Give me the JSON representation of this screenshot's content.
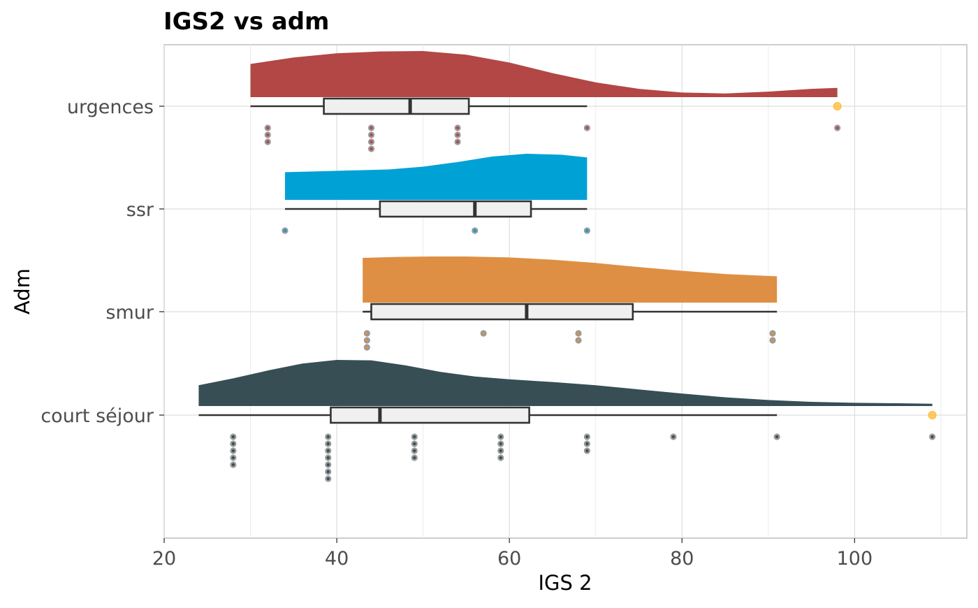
{
  "chart_data": {
    "type": "raincloud",
    "title": "IGS2 vs adm",
    "xlabel": "IGS 2",
    "ylabel": "Adm",
    "xlim": [
      20,
      113
    ],
    "x_ticks": [
      20,
      40,
      60,
      80,
      100
    ],
    "grid": true,
    "categories": [
      "urgences",
      "ssr",
      "smur",
      "court séjour"
    ],
    "series": [
      {
        "name": "urgences",
        "color": "#b24745",
        "box": {
          "min": 30,
          "q1": 38.5,
          "median": 48.5,
          "q3": 55.3,
          "max": 69
        },
        "outliers": [
          98
        ],
        "density": {
          "x": [
            30,
            35,
            40,
            45,
            50,
            55,
            60,
            65,
            70,
            75,
            80,
            85,
            90,
            95,
            98
          ],
          "y": [
            0.72,
            0.86,
            0.95,
            0.99,
            1.0,
            0.92,
            0.75,
            0.52,
            0.32,
            0.18,
            0.1,
            0.08,
            0.12,
            0.18,
            0.2
          ]
        },
        "points": [
          {
            "x": 32,
            "count": 3
          },
          {
            "x": 44,
            "count": 4
          },
          {
            "x": 54,
            "count": 3
          },
          {
            "x": 69,
            "count": 1
          },
          {
            "x": 98,
            "count": 1
          }
        ]
      },
      {
        "name": "ssr",
        "color": "#00a1d5",
        "box": {
          "min": 34,
          "q1": 45,
          "median": 56,
          "q3": 62.5,
          "max": 69
        },
        "outliers": [],
        "density": {
          "x": [
            34,
            38,
            42,
            46,
            50,
            54,
            58,
            62,
            66,
            69
          ],
          "y": [
            0.6,
            0.62,
            0.64,
            0.66,
            0.72,
            0.82,
            0.94,
            1.0,
            0.98,
            0.92
          ]
        },
        "points": [
          {
            "x": 34,
            "count": 1
          },
          {
            "x": 56,
            "count": 1
          },
          {
            "x": 69,
            "count": 1
          }
        ]
      },
      {
        "name": "smur",
        "color": "#df8f44",
        "box": {
          "min": 43,
          "q1": 44,
          "median": 62,
          "q3": 74.3,
          "max": 91
        },
        "outliers": [],
        "density": {
          "x": [
            43,
            47,
            51,
            55,
            60,
            65,
            70,
            75,
            80,
            85,
            91
          ],
          "y": [
            0.97,
            0.99,
            1.0,
            1.0,
            0.98,
            0.93,
            0.86,
            0.77,
            0.69,
            0.62,
            0.57
          ]
        },
        "points": [
          {
            "x": 43.5,
            "count": 3
          },
          {
            "x": 57,
            "count": 1
          },
          {
            "x": 68,
            "count": 2
          },
          {
            "x": 90.5,
            "count": 2
          }
        ]
      },
      {
        "name": "court séjour",
        "color": "#374e55",
        "box": {
          "min": 24,
          "q1": 39.3,
          "median": 45,
          "q3": 62.3,
          "max": 91
        },
        "outliers": [
          109
        ],
        "density": {
          "x": [
            24,
            28,
            32,
            36,
            40,
            44,
            48,
            52,
            56,
            60,
            65,
            70,
            75,
            80,
            85,
            90,
            95,
            100,
            105,
            109
          ],
          "y": [
            0.45,
            0.6,
            0.77,
            0.92,
            1.0,
            0.99,
            0.88,
            0.74,
            0.64,
            0.58,
            0.52,
            0.45,
            0.36,
            0.27,
            0.19,
            0.13,
            0.09,
            0.07,
            0.06,
            0.05
          ]
        },
        "points": [
          {
            "x": 28,
            "count": 5
          },
          {
            "x": 39,
            "count": 7
          },
          {
            "x": 49,
            "count": 4
          },
          {
            "x": 59,
            "count": 4
          },
          {
            "x": 69,
            "count": 3
          },
          {
            "x": 79,
            "count": 1
          },
          {
            "x": 91,
            "count": 1
          },
          {
            "x": 109,
            "count": 1
          }
        ]
      }
    ],
    "outlier_color": "#ffb932",
    "box_fill": "#f0f0f0"
  }
}
